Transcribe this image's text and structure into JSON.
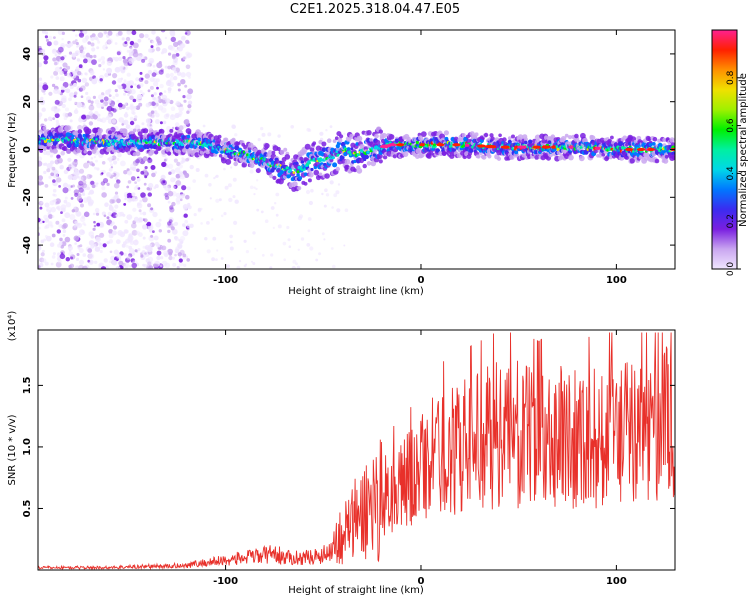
{
  "figure": {
    "title": "C2E1.2025.318.04.47.E05"
  },
  "chart_data": [
    {
      "type": "heatmap",
      "xlabel": "Height of straight line (km)",
      "ylabel": "Frequency (Hz)",
      "xlim": [
        -196,
        130
      ],
      "ylim": [
        -50,
        50
      ],
      "xticks": [
        -100,
        0,
        100
      ],
      "yticks": [
        -40,
        -20,
        0,
        20,
        40
      ],
      "colorbar": {
        "label": "Normalized spectral amplitude",
        "range": [
          0,
          1
        ],
        "ticks": [
          0.0,
          0.2,
          0.4,
          0.6,
          0.8
        ],
        "colors": [
          "#f0e6ff",
          "#c9a6f0",
          "#7a1fe0",
          "#3a2cf0",
          "#0078ff",
          "#00d8e8",
          "#00f0a0",
          "#00f000",
          "#a0f000",
          "#f0e000",
          "#ff9000",
          "#ff2000",
          "#ff2090"
        ]
      },
      "ridge": {
        "x": [
          -196,
          -180,
          -160,
          -140,
          -120,
          -110,
          -100,
          -90,
          -80,
          -70,
          -65,
          -60,
          -55,
          -50,
          -45,
          -40,
          -35,
          -30,
          -25,
          -20,
          -15,
          -10,
          -5,
          0,
          10,
          20,
          40,
          60,
          80,
          100,
          120,
          130
        ],
        "y": [
          4,
          4,
          3,
          3,
          3,
          2,
          0,
          -2,
          -5,
          -8,
          -9,
          -8,
          -4,
          -4,
          -3,
          0,
          -2,
          -1,
          0,
          1,
          2,
          2,
          2,
          2,
          2,
          2,
          1,
          1,
          1,
          0,
          0,
          0
        ]
      }
    },
    {
      "type": "line",
      "xlabel": "Height of straight line (km)",
      "ylabel": "SNR (10 * v/v)",
      "ymultiplier": "(x10⁴)",
      "xlim": [
        -196,
        130
      ],
      "ylim": [
        0,
        1.95
      ],
      "xticks": [
        -100,
        0,
        100
      ],
      "yticks": [
        0.5,
        1.0,
        1.5
      ],
      "color": "#e8302a",
      "series": [
        {
          "x": [
            -196,
            -180,
            -160,
            -140,
            -130,
            -120,
            -110,
            -100,
            -90,
            -80,
            -75,
            -70,
            -60,
            -50,
            -45,
            -40,
            -35,
            -30,
            -25,
            -20,
            -15,
            -10,
            -5,
            0,
            10,
            20,
            30,
            40,
            50,
            60,
            70,
            80,
            90,
            100,
            110,
            120,
            130
          ],
          "y": [
            0.02,
            0.02,
            0.02,
            0.03,
            0.03,
            0.04,
            0.06,
            0.08,
            0.1,
            0.12,
            0.14,
            0.1,
            0.1,
            0.12,
            0.2,
            0.3,
            0.38,
            0.45,
            0.55,
            0.6,
            0.65,
            0.7,
            0.75,
            0.85,
            0.95,
            1.0,
            1.05,
            1.1,
            1.1,
            1.05,
            1.1,
            1.1,
            1.05,
            1.15,
            1.1,
            1.15,
            1.2
          ]
        }
      ]
    }
  ]
}
